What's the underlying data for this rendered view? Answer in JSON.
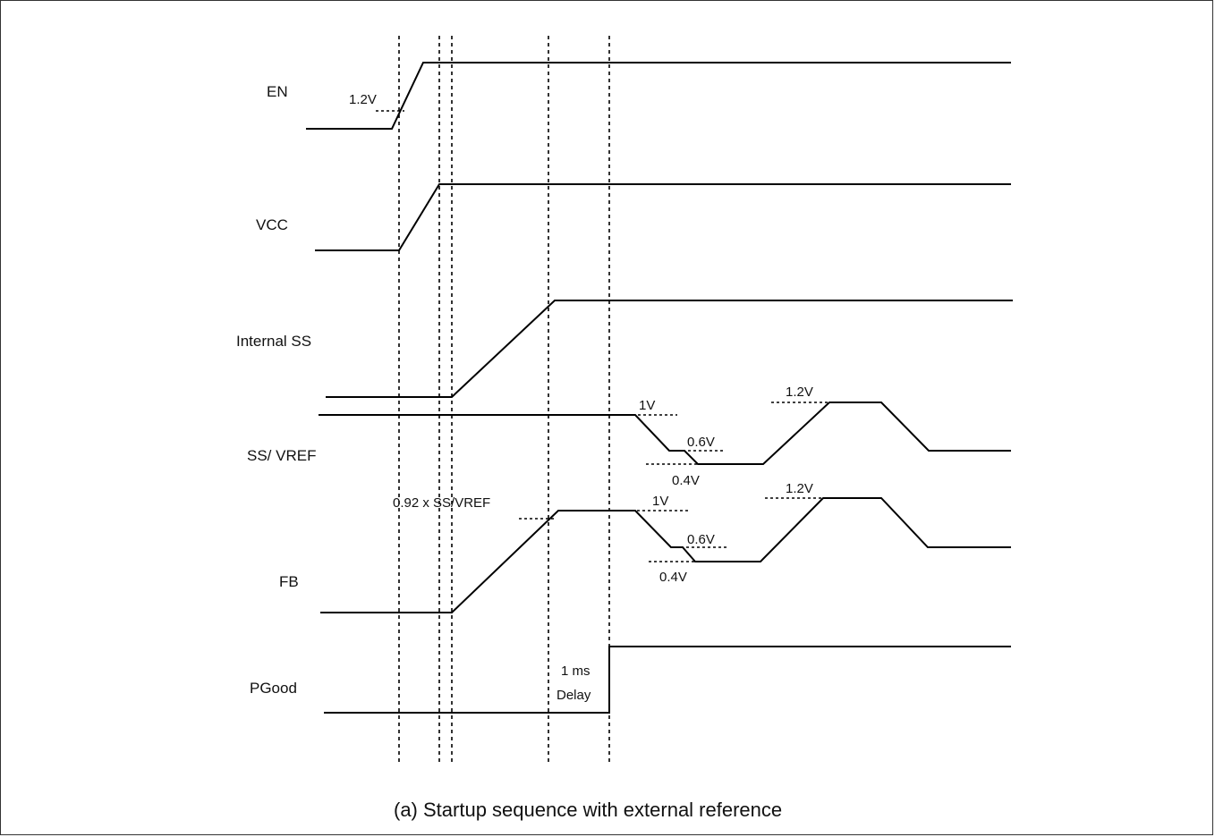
{
  "signals": {
    "en": "EN",
    "vcc": "VCC",
    "internal_ss": "Internal SS",
    "ss_vref": "SS/ VREF",
    "fb": "FB",
    "pgood": "PGood"
  },
  "annotations": {
    "en_threshold": "1.2V",
    "ss_1v": "1V",
    "ss_06v": "0.6V",
    "ss_04v": "0.4V",
    "ss_12v": "1.2V",
    "fb_ratio": "0.92 x SS/VREF",
    "fb_1v": "1V",
    "fb_06v": "0.6V",
    "fb_04v": "0.4V",
    "fb_12v": "1.2V",
    "delay_line1": "1 ms",
    "delay_line2": "Delay"
  },
  "caption": "(a)  Startup sequence with external reference"
}
